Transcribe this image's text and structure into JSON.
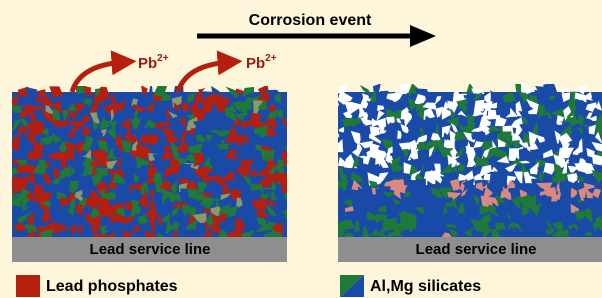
{
  "title": "Corrosion event",
  "ions": [
    {
      "base": "Pb",
      "sup": "2+"
    },
    {
      "base": "Pb",
      "sup": "2+"
    }
  ],
  "panels": [
    {
      "label": "Lead service line",
      "legend": "Lead phosphates"
    },
    {
      "label": "Lead service line",
      "legend": "Al,Mg silicates"
    }
  ]
}
